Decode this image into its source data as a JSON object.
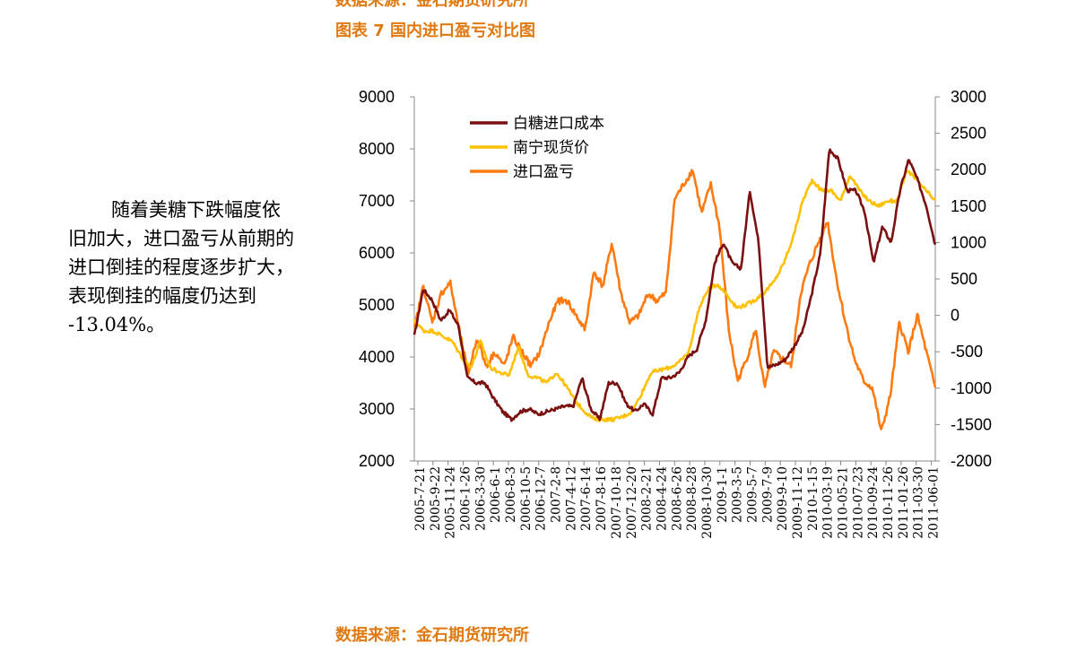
{
  "header": {
    "cut_source": "数据来源：金石期货研究所",
    "figure_title": "图表 7 国内进口盈亏对比图"
  },
  "body_text": {
    "lines": [
      "随着美糖下跌幅度依",
      "旧加大，进口盈亏从前期的",
      "进口倒挂的程度逐步扩大，",
      "表现倒挂的幅度仍达到",
      "-13.04%。"
    ]
  },
  "footer": {
    "source": "数据来源：金石期货研究所"
  },
  "chart_data": {
    "type": "line",
    "title": "",
    "xlabel": "",
    "ylabel": "",
    "ylim": [
      2000,
      9000
    ],
    "y2lim": [
      -2000,
      3000
    ],
    "yticks": [
      2000,
      3000,
      4000,
      5000,
      6000,
      7000,
      8000,
      9000
    ],
    "y2ticks": [
      -2000,
      -1500,
      -1000,
      -500,
      0,
      500,
      1000,
      1500,
      2000,
      2500,
      3000
    ],
    "x_tick_labels": [
      "2005-7-21",
      "2005-9-22",
      "2005-11-24",
      "2006-1-26",
      "2006-3-30",
      "2006-6-1",
      "2006-8-3",
      "2006-10-5",
      "2006-12-7",
      "2007-2-8",
      "2007-4-12",
      "2007-6-14",
      "2007-8-16",
      "2007-10-18",
      "2007-12-20",
      "2008-2-21",
      "2008-4-24",
      "2008-6-26",
      "2008-8-28",
      "2008-10-30",
      "2009-1-1",
      "2009-3-5",
      "2009-5-7",
      "2009-7-9",
      "2009-9-10",
      "2009-11-12",
      "2010-1-15",
      "2010-03-19",
      "2010-05-21",
      "2010-07-23",
      "2010-09-24",
      "2010-11-26",
      "2011-01-26",
      "2011-03-30",
      "2011-06-01"
    ],
    "legend_position": "top-left",
    "series": [
      {
        "name": "白糖进口成本",
        "axis": "left",
        "color": "#7b1010",
        "values": [
          4400,
          5300,
          5100,
          4700,
          4900,
          4600,
          3600,
          3500,
          3500,
          3200,
          2950,
          2800,
          2950,
          3000,
          2900,
          2950,
          3000,
          3050,
          3050,
          3600,
          3000,
          2800,
          3500,
          3500,
          3100,
          2950,
          3100,
          2900,
          3600,
          3600,
          3700,
          4000,
          4150,
          4700,
          5800,
          6200,
          5800,
          5700,
          7200,
          6200,
          3800,
          3850,
          3950,
          4200,
          4500,
          5200,
          6000,
          8000,
          7800,
          7200,
          7200,
          6800,
          5800,
          6500,
          6200,
          7200,
          7800,
          7400,
          6900,
          6150
        ]
      },
      {
        "name": "南宁现货价",
        "axis": "left",
        "color": "#ffc000",
        "values": [
          4700,
          4500,
          4500,
          4400,
          4300,
          4000,
          3800,
          4300,
          3800,
          3700,
          3650,
          4200,
          3650,
          3600,
          3500,
          3700,
          3450,
          3150,
          2950,
          2800,
          2800,
          2800,
          2850,
          2950,
          3300,
          3700,
          3750,
          3800,
          3900,
          4100,
          4900,
          5300,
          5400,
          5200,
          4950,
          5000,
          5100,
          5250,
          5450,
          5800,
          6300,
          7000,
          7400,
          7200,
          7200,
          7000,
          7500,
          7200,
          7000,
          6900,
          7000,
          7000,
          7600,
          7400,
          7200,
          7000
        ]
      },
      {
        "name": "进口盈亏",
        "axis": "right",
        "color": "#ff7a10",
        "values": [
          -200,
          400,
          -100,
          300,
          450,
          -200,
          -800,
          -300,
          -700,
          -500,
          -700,
          -300,
          -500,
          -700,
          -500,
          -100,
          200,
          200,
          0,
          -200,
          600,
          400,
          1000,
          300,
          -100,
          0,
          300,
          200,
          300,
          1600,
          1800,
          2000,
          1400,
          1800,
          1200,
          -200,
          -900,
          -600,
          -200,
          -1000,
          -500,
          -600,
          -700,
          300,
          700,
          1000,
          1300,
          500,
          -100,
          -600,
          -900,
          -1000,
          -1600,
          -1100,
          -100,
          -500,
          0,
          -500,
          -1000
        ]
      }
    ]
  }
}
